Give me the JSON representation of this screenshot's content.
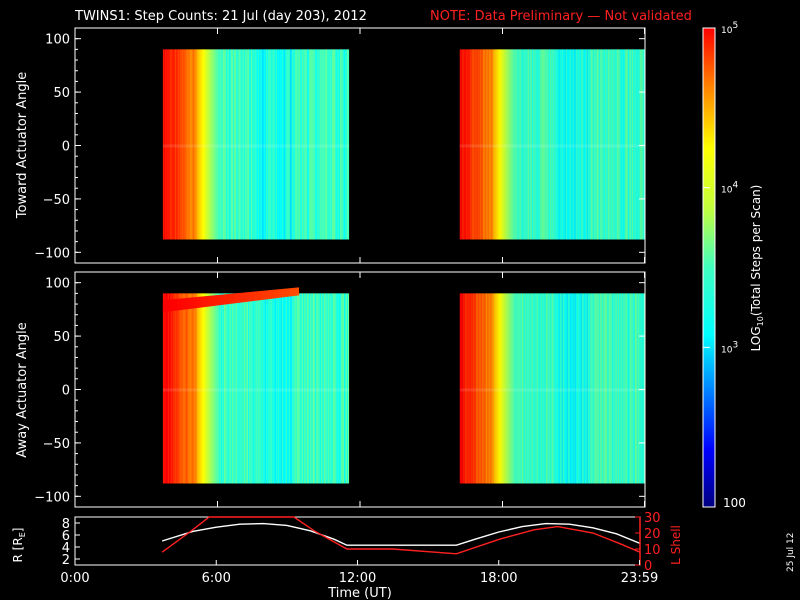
{
  "title": {
    "main": "TWINS1: Step Counts: 21 Jul (day 203), 2012",
    "note": "NOTE: Data Preliminary — Not validated",
    "note_color": "#ff2020"
  },
  "date_stamp": "25 Jul 12",
  "chart_data": [
    {
      "type": "heatmap",
      "ylabel": "Toward Actuator Angle",
      "ylim": [
        -110,
        110
      ],
      "yticks": [
        "100",
        "50",
        "0",
        "−50",
        "−100"
      ],
      "ytick_values": [
        100,
        50,
        0,
        -50,
        -100
      ],
      "xlim": [
        0,
        24
      ],
      "data_blocks": [
        {
          "t_start": 3.7,
          "t_end": 11.55,
          "angle_min": -88,
          "angle_max": 90
        },
        {
          "t_start": 16.2,
          "t_end": 24.0,
          "angle_min": -88,
          "angle_max": 90
        }
      ]
    },
    {
      "type": "heatmap",
      "ylabel": "Away Actuator Angle",
      "ylim": [
        -110,
        110
      ],
      "yticks": [
        "100",
        "50",
        "0",
        "−50",
        "−100"
      ],
      "ytick_values": [
        100,
        50,
        0,
        -50,
        -100
      ],
      "xlim": [
        0,
        24
      ],
      "data_blocks": [
        {
          "t_start": 3.7,
          "t_end": 11.55,
          "angle_min": -88,
          "angle_max": 90
        },
        {
          "t_start": 16.2,
          "t_end": 24.0,
          "angle_min": -88,
          "angle_max": 90
        }
      ]
    },
    {
      "type": "line",
      "ylabel_left": "R [R",
      "ylabel_left_sub": "E",
      "ylabel_left_end": "]",
      "ylabel_right": "L Shell",
      "left_ylim": [
        1,
        9
      ],
      "left_ytick_values": [
        2,
        4,
        6,
        8
      ],
      "left_yticks": [
        "2",
        "4",
        "6",
        "8"
      ],
      "right_ylim": [
        0,
        30
      ],
      "right_ytick_values": [
        0,
        10,
        20,
        30
      ],
      "right_yticks": [
        "0",
        "10",
        "20",
        "30"
      ],
      "xlim": [
        0,
        24
      ],
      "xticks": [
        "0:00",
        "6:00",
        "12:00",
        "18:00",
        "23:59"
      ],
      "xtick_values": [
        0,
        6,
        12,
        18,
        23.98
      ],
      "xlabel": "Time (UT)",
      "series": [
        {
          "axis": "left",
          "color": "#ffffff",
          "x": [
            3.7,
            5,
            6,
            7,
            8,
            9,
            10,
            11,
            11.55,
            13,
            14,
            15,
            16.2,
            17,
            18,
            19,
            20,
            21,
            22,
            23,
            24
          ],
          "y": [
            5.0,
            6.6,
            7.3,
            7.8,
            7.9,
            7.6,
            6.7,
            5.3,
            4.3,
            4.3,
            4.3,
            4.3,
            4.3,
            5.3,
            6.5,
            7.4,
            7.9,
            7.8,
            7.2,
            6.2,
            4.6
          ]
        },
        {
          "axis": "right",
          "color": "#ff2020",
          "x": [
            3.7,
            5.0,
            5.7,
            9.3,
            10.2,
            11.55,
            13.5,
            16.2,
            18.0,
            19.5,
            20.5,
            22.0,
            23.2,
            24.0
          ],
          "y": [
            8,
            22,
            30,
            30,
            21,
            10,
            10,
            7,
            16,
            22,
            24,
            20,
            13,
            8
          ]
        }
      ]
    }
  ],
  "colorbar": {
    "label": "LOG",
    "label_sub": "10",
    "label_rest": "(Total Steps per Scan)",
    "ticks": [
      {
        "base": "10",
        "exp": "5",
        "value": 5
      },
      {
        "base": "10",
        "exp": "4",
        "value": 4
      },
      {
        "base": "10",
        "exp": "3",
        "value": 3
      }
    ],
    "bottom_label": "100",
    "range": [
      2,
      5
    ]
  }
}
